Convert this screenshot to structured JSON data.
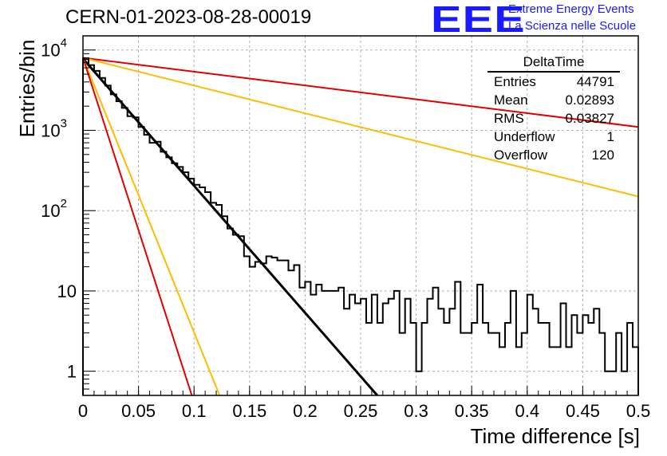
{
  "header": {
    "title": "CERN-01-2023-08-28-00019",
    "logo_text": "EEE",
    "logo_line1": "Extreme Energy Events",
    "logo_line2": "La Scienza nelle Scuole"
  },
  "stats": {
    "name": "DeltaTime",
    "rows": [
      {
        "label": "Entries",
        "value": "44791"
      },
      {
        "label": "Mean",
        "value": "0.02893"
      },
      {
        "label": "RMS",
        "value": "0.03827"
      },
      {
        "label": "Underflow",
        "value": "1"
      },
      {
        "label": "Overflow",
        "value": "120"
      }
    ]
  },
  "chart_data": {
    "type": "line",
    "xlabel": "Time difference [s]",
    "ylabel": "Entries/bin",
    "xlim": [
      0,
      0.5
    ],
    "ylim": [
      0.5,
      15000
    ],
    "yscale": "log",
    "grid": true,
    "xticks": [
      "0",
      "0.05",
      "0.1",
      "0.15",
      "0.2",
      "0.25",
      "0.3",
      "0.35",
      "0.4",
      "0.45",
      "0.5"
    ],
    "yticks": [
      {
        "value": 1,
        "label": "1"
      },
      {
        "value": 10,
        "label": "10"
      },
      {
        "value": 100,
        "label": "10^2"
      },
      {
        "value": 1000,
        "label": "10^3"
      },
      {
        "value": 10000,
        "label": "10^4"
      }
    ],
    "histogram": {
      "bin_width": 0.005,
      "color": "#000000",
      "values": [
        7700,
        6500,
        5500,
        4500,
        3600,
        2800,
        2300,
        1900,
        1500,
        1450,
        1100,
        880,
        700,
        720,
        540,
        460,
        390,
        350,
        300,
        250,
        210,
        195,
        170,
        125,
        118,
        85,
        60,
        50,
        48,
        27,
        20,
        23,
        22,
        27,
        26,
        24,
        24,
        18,
        21,
        11,
        13,
        9,
        12,
        10,
        10,
        10,
        11,
        6,
        9,
        7,
        8,
        4,
        9,
        4,
        7,
        8,
        10,
        3,
        8,
        4,
        1,
        4,
        8,
        11,
        6,
        4,
        6,
        13,
        3,
        3,
        4,
        12,
        4,
        3,
        3,
        2,
        4,
        10,
        2,
        3,
        9,
        6,
        4,
        4,
        2,
        2,
        7,
        2,
        5,
        3,
        5,
        4,
        6,
        3,
        1,
        1,
        3,
        1,
        4,
        2
      ]
    },
    "series": [
      {
        "color": "#000000",
        "points": [
          [
            0,
            7800
          ],
          [
            0.265,
            0.5
          ]
        ]
      },
      {
        "color": "#e00000",
        "points": [
          [
            0,
            8000
          ],
          [
            0.5,
            1100
          ]
        ]
      },
      {
        "color": "#ffbb00",
        "points": [
          [
            0,
            8000
          ],
          [
            0.5,
            150
          ]
        ]
      },
      {
        "color": "#ffbb00",
        "points": [
          [
            0,
            8000
          ],
          [
            0.123,
            0.5
          ]
        ]
      },
      {
        "color": "#e00000",
        "points": [
          [
            0,
            8000
          ],
          [
            0.098,
            0.5
          ]
        ]
      }
    ]
  }
}
